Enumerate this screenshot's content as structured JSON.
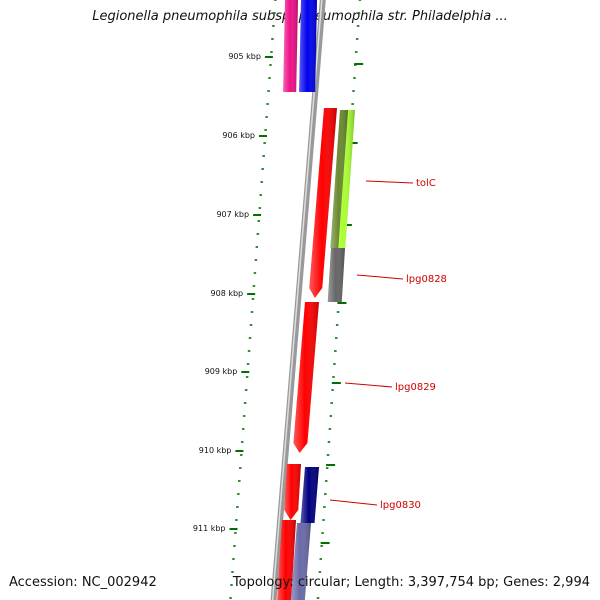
{
  "title": "Legionella pneumophila subsp. pneumophila str. Philadelphia ...",
  "footer": {
    "accession": "Accession: NC_002942",
    "summary": "Topology: circular; Length: 3,397,754 bp; Genes: 2,994"
  },
  "ticks": [
    "905 kbp",
    "906 kbp",
    "907 kbp",
    "908 kbp",
    "909 kbp",
    "910 kbp",
    "911 kbp"
  ],
  "genes": [
    {
      "name": "tolC",
      "color": "#88e040"
    },
    {
      "name": "lpg0828",
      "color": "#666666"
    },
    {
      "name": "lpg0829",
      "color": "#ff0000"
    },
    {
      "name": "lpg0830",
      "color": "#000080"
    }
  ],
  "colors": {
    "backbone": "#999999",
    "tick": "#007000",
    "magenta": "#ee1188",
    "blue": "#0000ee",
    "red": "#ff0000",
    "olive": "#6a8a30",
    "lime": "#aaff33",
    "grey": "#666666",
    "navy": "#000080",
    "slate": "#6a6aa8",
    "label": "#d00000"
  }
}
